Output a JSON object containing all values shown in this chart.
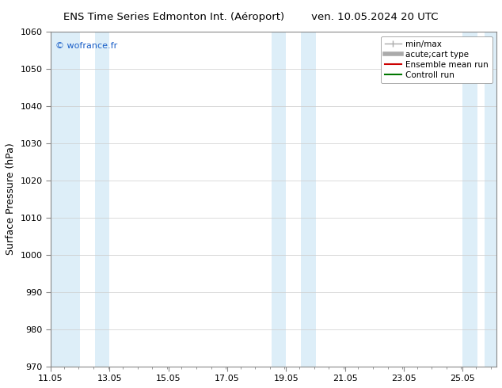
{
  "title_left": "ENS Time Series Edmonton Int. (Aéroport)",
  "title_right": "ven. 10.05.2024 20 UTC",
  "ylabel": "Surface Pressure (hPa)",
  "ylim": [
    970,
    1060
  ],
  "yticks": [
    970,
    980,
    990,
    1000,
    1010,
    1020,
    1030,
    1040,
    1050,
    1060
  ],
  "xmin": 11.05,
  "xmax": 26.2,
  "xtick_labels": [
    "11.05",
    "13.05",
    "15.05",
    "17.05",
    "19.05",
    "21.05",
    "23.05",
    "25.05"
  ],
  "xtick_positions": [
    11.05,
    13.05,
    15.05,
    17.05,
    19.05,
    21.05,
    23.05,
    25.05
  ],
  "shaded_bands": [
    {
      "xmin": 11.05,
      "xmax": 12.05
    },
    {
      "xmin": 12.55,
      "xmax": 13.05
    },
    {
      "xmin": 18.55,
      "xmax": 19.05
    },
    {
      "xmin": 19.55,
      "xmax": 20.05
    },
    {
      "xmin": 25.05,
      "xmax": 25.55
    },
    {
      "xmin": 25.8,
      "xmax": 26.2
    }
  ],
  "band_color": "#ddeef8",
  "background_color": "#ffffff",
  "watermark_text": "© wofrance.fr",
  "watermark_color": "#1a5fc8",
  "legend_entries": [
    {
      "label": "min/max",
      "color": "#aaaaaa",
      "lw": 1.0
    },
    {
      "label": "acute;cart type",
      "color": "#aaaaaa",
      "lw": 4
    },
    {
      "label": "Ensemble mean run",
      "color": "#cc0000",
      "lw": 1.5
    },
    {
      "label": "Controll run",
      "color": "#007700",
      "lw": 1.5
    }
  ],
  "grid_color": "#cccccc",
  "spine_color": "#888888",
  "title_fontsize": 9.5,
  "ylabel_fontsize": 9,
  "tick_fontsize": 8,
  "legend_fontsize": 7.5,
  "watermark_fontsize": 8
}
